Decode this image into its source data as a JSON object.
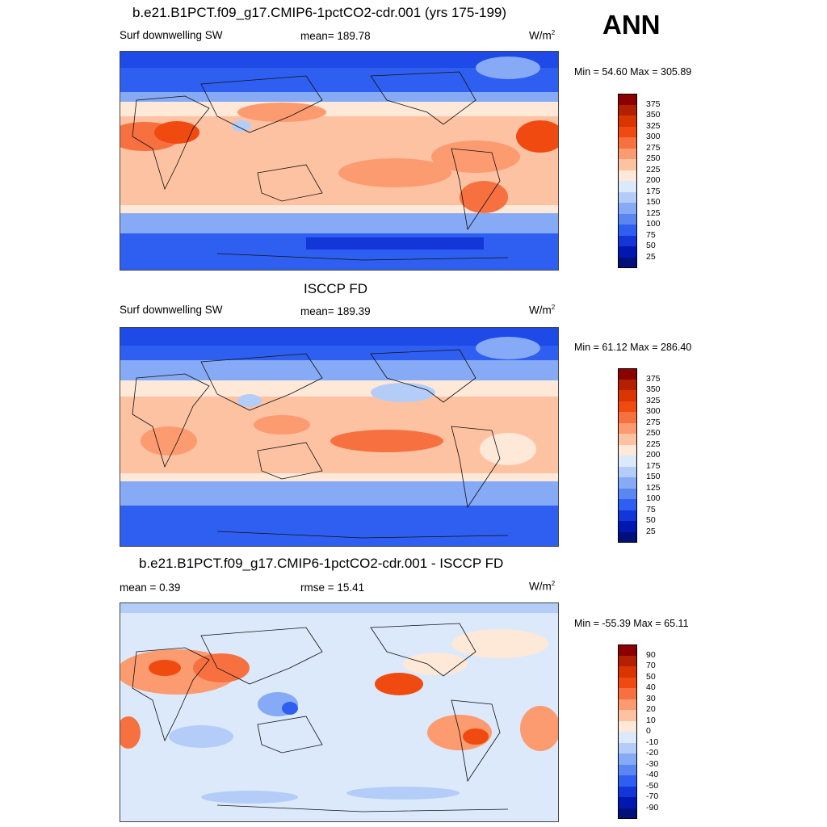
{
  "season": "ANN",
  "units_base": "W/m",
  "units_exp": "2",
  "panels": [
    {
      "title": "b.e21.B1PCT.f09_g17.CMIP6-1pctCO2-cdr.001 (yrs 175-199)",
      "left_label": "Surf downwelling SW",
      "center_label": "mean= 189.78",
      "minmax": "Min =  54.60 Max = 305.89",
      "levels": [
        "375",
        "350",
        "325",
        "300",
        "275",
        "250",
        "225",
        "200",
        "175",
        "150",
        "125",
        "100",
        "75",
        "50",
        "25"
      ]
    },
    {
      "title": "ISCCP FD",
      "left_label": "Surf downwelling SW",
      "center_label": "mean= 189.39",
      "minmax": "Min =  61.12 Max = 286.40",
      "levels": [
        "375",
        "350",
        "325",
        "300",
        "275",
        "250",
        "225",
        "200",
        "175",
        "150",
        "125",
        "100",
        "75",
        "50",
        "25"
      ]
    },
    {
      "title": "b.e21.B1PCT.f09_g17.CMIP6-1pctCO2-cdr.001 - ISCCP FD",
      "left_label": "mean =   0.39",
      "center_label": "rmse =  15.41",
      "minmax": "Min = -55.39 Max =  65.11",
      "levels": [
        "90",
        "70",
        "50",
        "40",
        "30",
        "20",
        "10",
        "0",
        "-10",
        "-20",
        "-30",
        "-40",
        "-50",
        "-70",
        "-90"
      ]
    }
  ],
  "colors": {
    "palette_top_to_bottom": [
      "#8b0000",
      "#b22000",
      "#d93500",
      "#f04a10",
      "#f77040",
      "#fc9a70",
      "#fdc2a2",
      "#fee8d8",
      "#dbe9fb",
      "#b4cdf8",
      "#86aaf5",
      "#5a86f2",
      "#2f5ff0",
      "#1236d8",
      "#0018b0",
      "#00107a"
    ]
  }
}
